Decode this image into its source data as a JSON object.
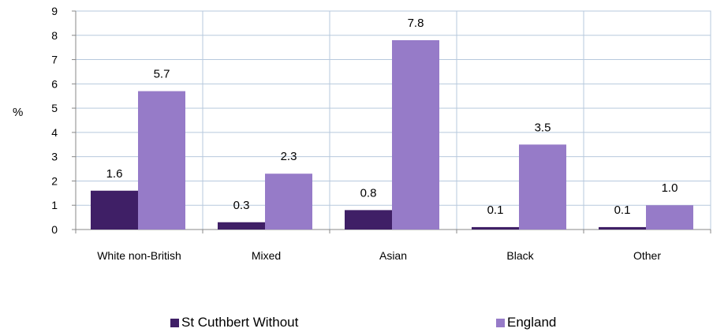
{
  "chart_data": {
    "type": "bar",
    "categories": [
      "White non-British",
      "Mixed",
      "Asian",
      "Black",
      "Other"
    ],
    "series": [
      {
        "name": "St Cuthbert Without",
        "values": [
          1.6,
          0.3,
          0.8,
          0.1,
          0.1
        ],
        "labels": [
          "1.6",
          "0.3",
          "0.8",
          "0.1",
          "0.1"
        ],
        "color": "#3f1f66"
      },
      {
        "name": "England",
        "values": [
          5.7,
          2.3,
          7.8,
          3.5,
          1.0
        ],
        "labels": [
          "5.7",
          "2.3",
          "7.8",
          "3.5",
          "1.0"
        ],
        "color": "#967bc8"
      }
    ],
    "ylabel": "%",
    "ylim": [
      0,
      9
    ],
    "yticks": [
      "0",
      "1",
      "2",
      "3",
      "4",
      "5",
      "6",
      "7",
      "8",
      "9"
    ],
    "grid": true,
    "legend_position": "bottom"
  }
}
